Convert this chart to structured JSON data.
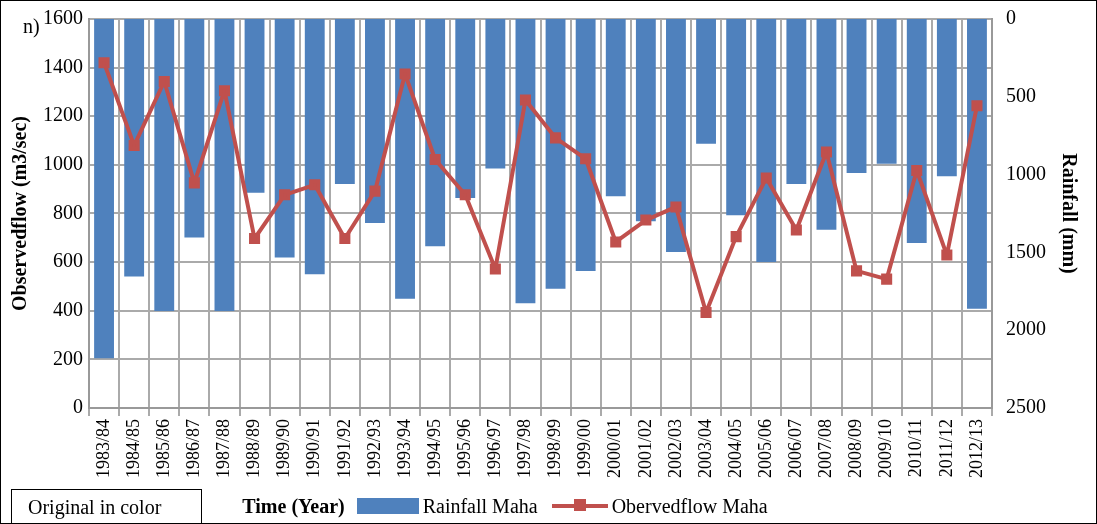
{
  "chart_data": {
    "type": "bar",
    "title": "n)",
    "xlabel": "Time (Year)",
    "ylabel": "Observedflow (m3/sec)",
    "y2label": "Rainfall (mm)",
    "categories": [
      "1983/84",
      "1984/85",
      "1985/86",
      "1986/87",
      "1987/88",
      "1988/89",
      "1989/90",
      "1990/91",
      "1991/92",
      "1992/93",
      "1993/94",
      "1994/95",
      "1995/96",
      "1996/97",
      "1997/98",
      "1998/99",
      "1999/00",
      "2000/01",
      "2001/02",
      "2002/03",
      "2003/04",
      "2004/05",
      "2005/06",
      "2006/07",
      "2007/08",
      "2008/09",
      "2009/10",
      "2010/11",
      "2011/12",
      "2012/13"
    ],
    "series": [
      {
        "name": "Rainfall Maha",
        "axis": "y2",
        "color": "#4f81bd",
        "values": [
          2180,
          1655,
          1877,
          1404,
          1877,
          1117,
          1533,
          1640,
          1060,
          1311,
          1798,
          1461,
          1150,
          960,
          1827,
          1733,
          1619,
          1139,
          1300,
          1497,
          802,
          1261,
          1562,
          1060,
          1354,
          989,
          931,
          1440,
          1010,
          1862
        ]
      },
      {
        "name": "Obervedflow Maha",
        "type": "line",
        "color": "#c0504d",
        "marker": "square",
        "values": [
          1420,
          1080,
          1343,
          926,
          1305,
          697,
          877,
          918,
          697,
          892,
          1374,
          1022,
          877,
          572,
          1267,
          1111,
          1025,
          683,
          773,
          827,
          393,
          705,
          946,
          732,
          1053,
          564,
          530,
          977,
          629,
          1243
        ]
      }
    ],
    "ylim": [
      0,
      1600
    ],
    "yticks": [
      0,
      200,
      400,
      600,
      800,
      1000,
      1200,
      1400,
      1600
    ],
    "y2lim": [
      2500,
      0
    ],
    "y2ticks": [
      0,
      500,
      1000,
      1500,
      2000,
      2500
    ],
    "grid": true,
    "legend": "bottom",
    "annotations": [
      "Original in color"
    ]
  }
}
